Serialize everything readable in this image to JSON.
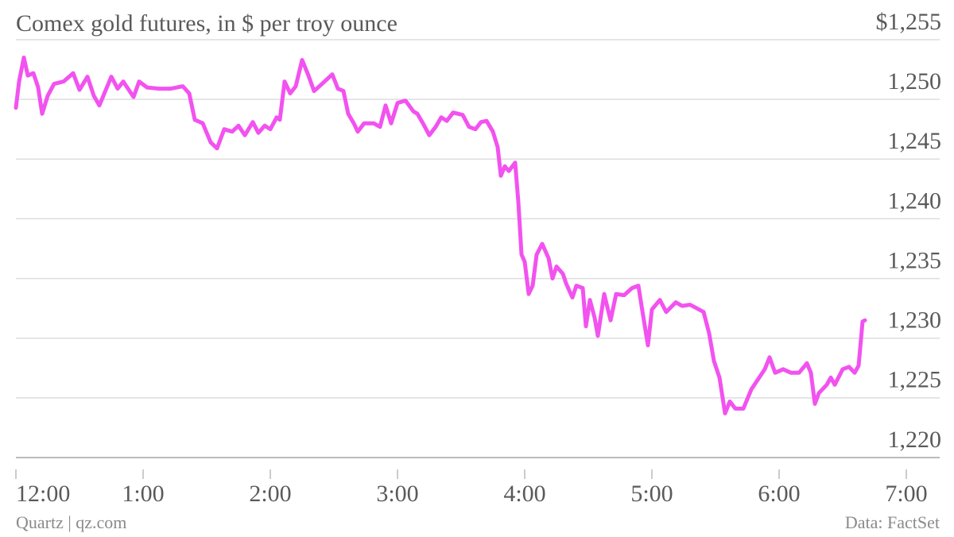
{
  "chart_data": {
    "type": "line",
    "title": "Comex gold futures, in $ per troy ounce",
    "source": "Data: FactSet",
    "credit": "Quartz | qz.com",
    "color": "#f252ef",
    "grid": true,
    "xlim": [
      0,
      7
    ],
    "xticks": [
      {
        "value": 0,
        "label": "12:00"
      },
      {
        "value": 1,
        "label": "1:00"
      },
      {
        "value": 2,
        "label": "2:00"
      },
      {
        "value": 3,
        "label": "3:00"
      },
      {
        "value": 4,
        "label": "4:00"
      },
      {
        "value": 5,
        "label": "5:00"
      },
      {
        "value": 6,
        "label": "6:00"
      },
      {
        "value": 7,
        "label": "7:00"
      }
    ],
    "ylim": [
      1220,
      1255
    ],
    "yticks": [
      {
        "value": 1220,
        "label": "1,220"
      },
      {
        "value": 1225,
        "label": "1,225"
      },
      {
        "value": 1230,
        "label": "1,230"
      },
      {
        "value": 1235,
        "label": "1,235"
      },
      {
        "value": 1240,
        "label": "1,240"
      },
      {
        "value": 1245,
        "label": "1,245"
      },
      {
        "value": 1250,
        "label": "1,250"
      },
      {
        "value": 1255,
        "label": "$1,255"
      }
    ],
    "x": [
      0,
      0.025,
      0.0625,
      0.094,
      0.1375,
      0.175,
      0.206,
      0.25,
      0.3,
      0.375,
      0.45,
      0.5,
      0.5625,
      0.6125,
      0.656,
      0.75,
      0.8,
      0.844,
      0.925,
      0.969,
      1.031,
      1.125,
      1.219,
      1.3125,
      1.3625,
      1.406,
      1.469,
      1.531,
      1.581,
      1.6375,
      1.7,
      1.75,
      1.8,
      1.8625,
      1.906,
      1.956,
      2.0,
      2.05,
      2.075,
      2.1125,
      2.156,
      2.2,
      2.25,
      2.3,
      2.344,
      2.406,
      2.4875,
      2.531,
      2.575,
      2.6125,
      2.656,
      2.6875,
      2.7375,
      2.8125,
      2.8625,
      2.906,
      2.95,
      3.0,
      3.0625,
      3.125,
      3.156,
      3.2,
      3.25,
      3.3,
      3.344,
      3.3875,
      3.4375,
      3.5125,
      3.5625,
      3.6125,
      3.656,
      3.7,
      3.75,
      3.7875,
      3.8125,
      3.844,
      3.875,
      3.925,
      3.95,
      3.975,
      4.0,
      4.031,
      4.0625,
      4.094,
      4.1375,
      4.1875,
      4.219,
      4.25,
      4.3,
      4.325,
      4.375,
      4.406,
      4.456,
      4.481,
      4.5125,
      4.55,
      4.575,
      4.625,
      4.675,
      4.719,
      4.781,
      4.844,
      4.894,
      4.919,
      4.969,
      5.0,
      5.0625,
      5.1125,
      5.1875,
      5.2375,
      5.3,
      5.406,
      5.45,
      5.4875,
      5.531,
      5.575,
      5.6125,
      5.656,
      5.719,
      5.781,
      5.844,
      5.8875,
      5.925,
      5.969,
      6.031,
      6.094,
      6.156,
      6.219,
      6.25,
      6.281,
      6.3125,
      6.375,
      6.406,
      6.4375,
      6.5,
      6.55,
      6.594,
      6.625,
      6.656,
      6.675
    ],
    "values": [
      1249.3,
      1251.5,
      1253.5,
      1252.0,
      1252.2,
      1251.0,
      1248.8,
      1250.3,
      1251.3,
      1251.5,
      1252.2,
      1250.8,
      1251.9,
      1250.3,
      1249.5,
      1251.9,
      1250.9,
      1251.5,
      1250.2,
      1251.5,
      1251.0,
      1250.9,
      1250.9,
      1251.1,
      1250.5,
      1248.3,
      1248.0,
      1246.4,
      1245.9,
      1247.5,
      1247.3,
      1247.8,
      1247.0,
      1248.1,
      1247.2,
      1247.8,
      1247.5,
      1248.5,
      1248.3,
      1251.5,
      1250.5,
      1251.1,
      1253.3,
      1252.0,
      1250.7,
      1251.3,
      1252.1,
      1250.9,
      1250.7,
      1248.8,
      1248.0,
      1247.3,
      1248.0,
      1248.0,
      1247.7,
      1249.5,
      1248.0,
      1249.7,
      1249.9,
      1249.0,
      1248.8,
      1248.0,
      1247.0,
      1247.7,
      1248.5,
      1248.2,
      1248.9,
      1248.7,
      1247.7,
      1247.5,
      1248.1,
      1248.2,
      1247.3,
      1246.0,
      1243.6,
      1244.4,
      1244.0,
      1244.7,
      1241.4,
      1237.0,
      1236.4,
      1233.7,
      1234.4,
      1237.0,
      1237.9,
      1236.7,
      1235.0,
      1236.0,
      1235.4,
      1234.6,
      1233.4,
      1234.4,
      1234.2,
      1231.0,
      1233.2,
      1231.7,
      1230.2,
      1233.7,
      1231.5,
      1233.7,
      1233.6,
      1234.2,
      1234.4,
      1232.7,
      1229.4,
      1232.4,
      1233.2,
      1232.2,
      1233.0,
      1232.7,
      1232.8,
      1232.2,
      1230.4,
      1228.1,
      1226.7,
      1223.7,
      1224.7,
      1224.1,
      1224.1,
      1225.7,
      1226.7,
      1227.4,
      1228.4,
      1227.1,
      1227.4,
      1227.1,
      1227.1,
      1227.9,
      1227.1,
      1224.5,
      1225.4,
      1226.1,
      1226.7,
      1226.1,
      1227.4,
      1227.6,
      1227.1,
      1227.7,
      1231.4,
      1231.5
    ]
  }
}
